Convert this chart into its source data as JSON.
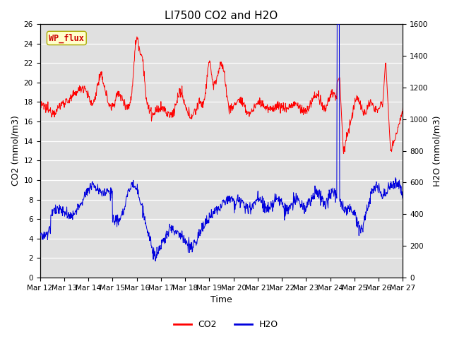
{
  "title": "LI7500 CO2 and H2O",
  "xlabel": "Time",
  "ylabel_left": "CO2 (mmol/m3)",
  "ylabel_right": "H2O (mmol/m3)",
  "ylim_left": [
    0,
    26
  ],
  "ylim_right": [
    0,
    1600
  ],
  "yticks_left": [
    0,
    2,
    4,
    6,
    8,
    10,
    12,
    14,
    16,
    18,
    20,
    22,
    24,
    26
  ],
  "yticks_right": [
    0,
    200,
    400,
    600,
    800,
    1000,
    1200,
    1400,
    1600
  ],
  "xtick_labels": [
    "Mar 12",
    "Mar 13",
    "Mar 14",
    "Mar 15",
    "Mar 16",
    "Mar 17",
    "Mar 18",
    "Mar 19",
    "Mar 20",
    "Mar 21",
    "Mar 22",
    "Mar 23",
    "Mar 24",
    "Mar 25",
    "Mar 26",
    "Mar 27"
  ],
  "co2_color": "#FF0000",
  "h2o_color": "#0000DD",
  "annotation_text": "WP_flux",
  "annotation_color": "#CC0000",
  "annotation_bg": "#FFFFCC",
  "annotation_edge": "#AAAA00",
  "bg_color": "#E0E0E0",
  "title_fontsize": 11,
  "axis_fontsize": 9,
  "tick_fontsize": 7.5,
  "legend_fontsize": 9,
  "linewidth": 0.7
}
